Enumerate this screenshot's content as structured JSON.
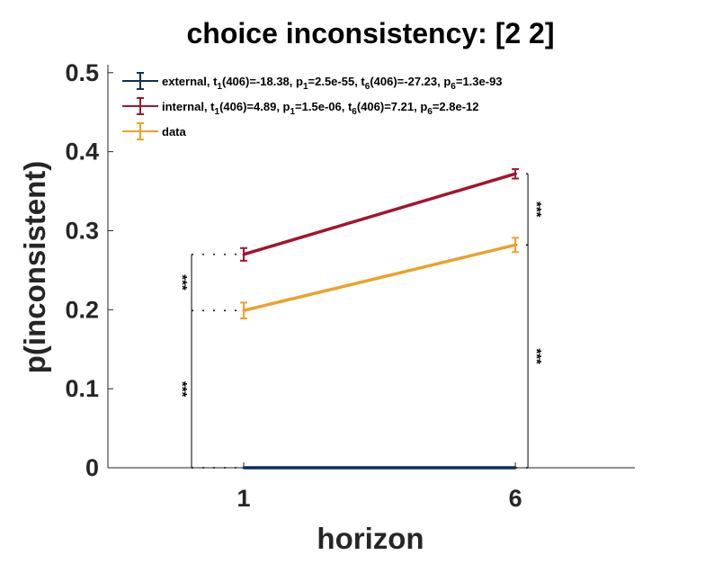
{
  "chart_data": {
    "type": "line",
    "title": "choice inconsistency: [2 2]",
    "xlabel": "horizon",
    "ylabel": "p(inconsistent)",
    "x": [
      1,
      6
    ],
    "xticks": [
      "1",
      "6"
    ],
    "xlim": [
      -1.5,
      8.2
    ],
    "ylim": [
      0,
      0.51
    ],
    "yticks": [
      "0",
      "0.1",
      "0.2",
      "0.3",
      "0.4",
      "0.5"
    ],
    "grid": false,
    "legend_position": "top-left",
    "series": [
      {
        "name": "external",
        "label_parts": [
          "external, t",
          "1",
          "(406)=-18.38, p",
          "1",
          "=2.5e-55, t",
          "6",
          "(406)=-27.23, p",
          "6",
          "=1.3e-93"
        ],
        "values": [
          0.0,
          0.0
        ],
        "errors": [
          0.0,
          0.0
        ],
        "color": "#0E2F5A"
      },
      {
        "name": "internal",
        "label_parts": [
          "internal, t",
          "1",
          "(406)=4.89, p",
          "1",
          "=1.5e-06, t",
          "6",
          "(406)=7.21, p",
          "6",
          "=2.8e-12"
        ],
        "values": [
          0.27,
          0.372
        ],
        "errors": [
          0.008,
          0.006
        ],
        "color": "#A2142F"
      },
      {
        "name": "data",
        "label_parts": [
          "data"
        ],
        "values": [
          0.199,
          0.282
        ],
        "errors": [
          0.01,
          0.009
        ],
        "color": "#EDA127"
      }
    ],
    "significance": [
      {
        "x": 1,
        "y1": 0.199,
        "y2": 0.27,
        "label": "***"
      },
      {
        "x": 1,
        "y1": 0.0,
        "y2": 0.199,
        "label": "***"
      },
      {
        "x": 6,
        "y1": 0.282,
        "y2": 0.372,
        "label": "***"
      },
      {
        "x": 6,
        "y1": 0.0,
        "y2": 0.282,
        "label": "***"
      }
    ]
  }
}
